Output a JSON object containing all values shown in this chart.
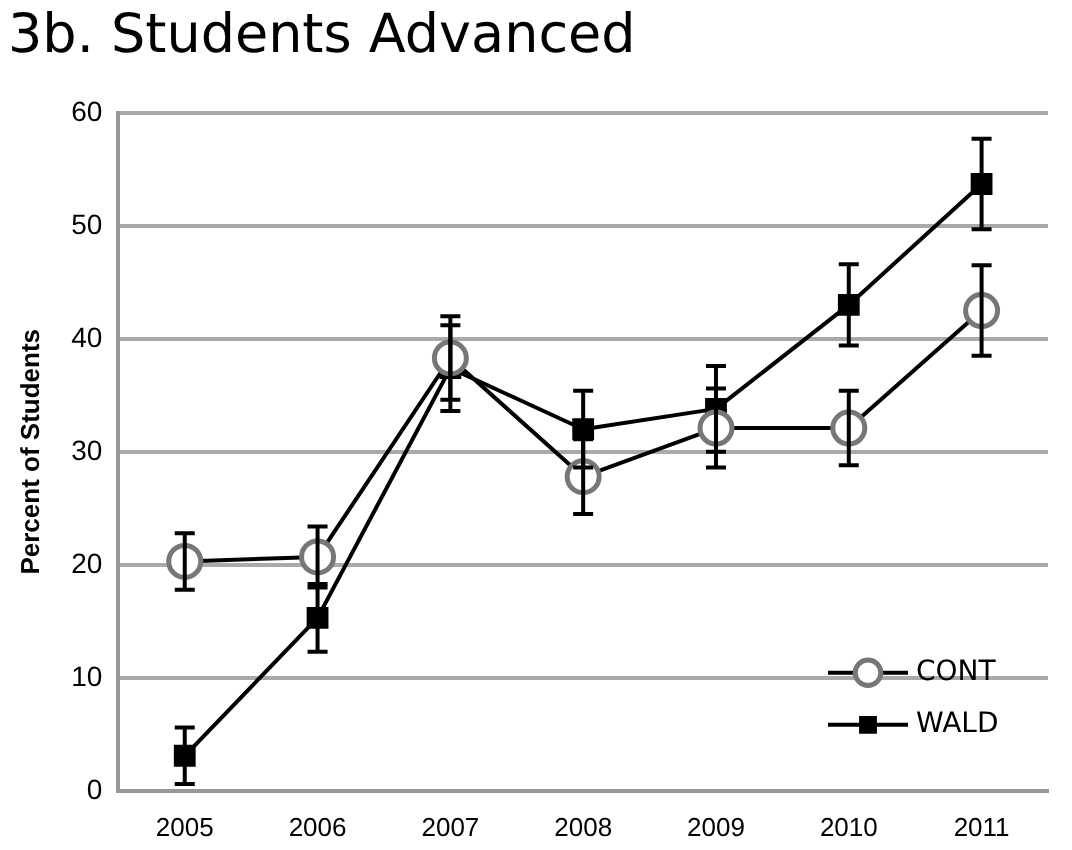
{
  "chart_data": {
    "type": "line",
    "title": "3b. Students Advanced",
    "ylabel": "Percent of Students",
    "categories": [
      "2005",
      "2006",
      "2007",
      "2008",
      "2009",
      "2010",
      "2011"
    ],
    "series": [
      {
        "name": "CONT",
        "color": "#000000",
        "marker": "circle",
        "values": [
          20.3,
          20.7,
          38.3,
          27.8,
          32.1,
          32.1,
          42.5
        ],
        "errors": [
          2.5,
          2.7,
          3.7,
          3.3,
          3.5,
          3.3,
          4
        ]
      },
      {
        "name": "WALD",
        "color": "#000000",
        "marker": "square",
        "values": [
          3.1,
          15.3,
          37.4,
          32,
          33.8,
          43,
          53.7
        ],
        "errors": [
          2.5,
          3,
          3.8,
          3.4,
          3.8,
          3.6,
          4
        ]
      }
    ],
    "ylim": [
      0,
      60
    ],
    "yticks": [
      0,
      10,
      20,
      30,
      40,
      50,
      60
    ],
    "grid": "y",
    "legend": "bottom right"
  }
}
